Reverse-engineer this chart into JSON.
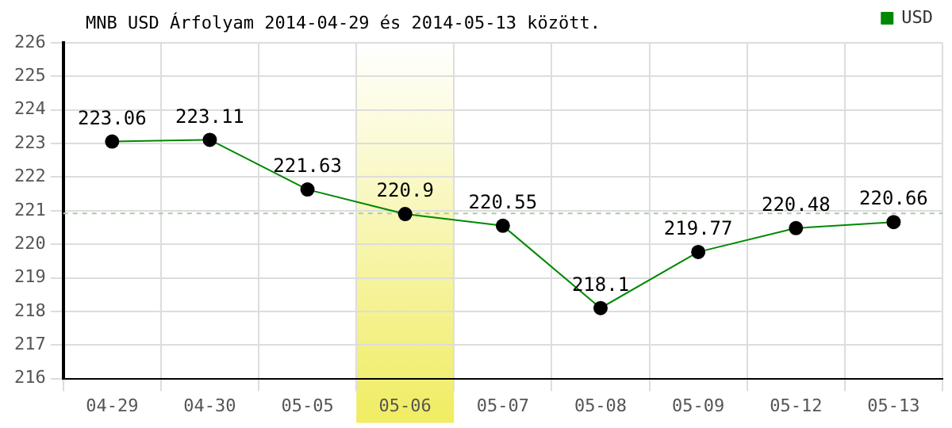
{
  "chart_data": {
    "type": "line",
    "title": "MNB USD Árfolyam 2014-04-29 és 2014-05-13 között.",
    "categories": [
      "04-29",
      "04-30",
      "05-05",
      "05-06",
      "05-07",
      "05-08",
      "05-09",
      "05-12",
      "05-13"
    ],
    "series": [
      {
        "name": "USD",
        "color": "#008800",
        "values": [
          223.06,
          223.11,
          221.63,
          220.9,
          220.55,
          218.1,
          219.77,
          220.48,
          220.66
        ]
      }
    ],
    "ylim": [
      216,
      226
    ],
    "yticks": [
      216,
      217,
      218,
      219,
      220,
      221,
      222,
      223,
      224,
      225,
      226
    ],
    "grid": true,
    "legend": "top right",
    "marker": "circle",
    "line_style": "solid",
    "data_labels": true,
    "ref_lines": [
      {
        "axis": "y",
        "value": 220.92,
        "color": "#aaccaa",
        "line_style": "dashed"
      }
    ],
    "bands": [
      {
        "axis": "x",
        "from": "05-06",
        "to": "05-06",
        "color": "#f0ec60"
      }
    ]
  }
}
